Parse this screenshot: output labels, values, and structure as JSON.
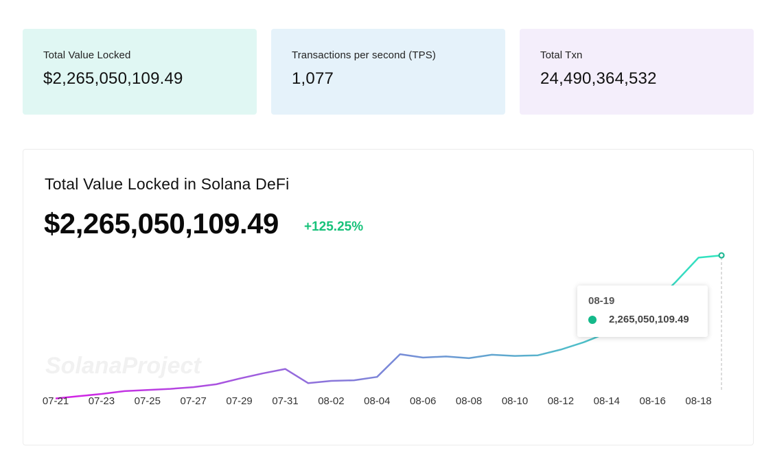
{
  "stats": [
    {
      "label": "Total Value Locked",
      "value": "$2,265,050,109.49",
      "bg": "#e0f7f3"
    },
    {
      "label": "Transactions per second (TPS)",
      "value": "1,077",
      "bg": "#e5f2fa"
    },
    {
      "label": "Total Txn",
      "value": "24,490,364,532",
      "bg": "#f4eefb"
    }
  ],
  "panel": {
    "title": "Total Value Locked in Solana DeFi",
    "value": "$2,265,050,109.49",
    "change": "+125.25%",
    "change_color": "#17c27a"
  },
  "tooltip": {
    "date": "08-19",
    "value": "2,265,050,109.49",
    "dot_color": "#14b98a"
  },
  "watermark": "SolanaProject",
  "colors": {
    "line_start": "#d61ee6",
    "line_mid": "#7a88d8",
    "line_end": "#2ee6be"
  },
  "chart_data": {
    "type": "line",
    "x": [
      "07-21",
      "07-22",
      "07-23",
      "07-24",
      "07-25",
      "07-26",
      "07-27",
      "07-28",
      "07-29",
      "07-30",
      "07-31",
      "08-01",
      "08-02",
      "08-03",
      "08-04",
      "08-05",
      "08-06",
      "08-07",
      "08-08",
      "08-09",
      "08-10",
      "08-11",
      "08-12",
      "08-13",
      "08-14",
      "08-15",
      "08-16",
      "08-17",
      "08-18",
      "08-19"
    ],
    "tick_labels": [
      "07-21",
      "07-23",
      "07-25",
      "07-27",
      "07-29",
      "07-31",
      "08-02",
      "08-04",
      "08-06",
      "08-08",
      "08-10",
      "08-12",
      "08-14",
      "08-16",
      "08-18"
    ],
    "series": [
      {
        "values": [
          1.005,
          1.025,
          1.045,
          1.07,
          1.08,
          1.09,
          1.105,
          1.13,
          1.18,
          1.225,
          1.265,
          1.14,
          1.16,
          1.165,
          1.195,
          1.395,
          1.365,
          1.375,
          1.36,
          1.39,
          1.38,
          1.385,
          1.435,
          1.5,
          1.58,
          1.68,
          1.83,
          2.03,
          2.245,
          2.265
        ]
      }
    ],
    "ylabel": "",
    "xlabel": "",
    "ylim": [
      0.9,
      2.35
    ],
    "grid": false,
    "legend": "none"
  }
}
